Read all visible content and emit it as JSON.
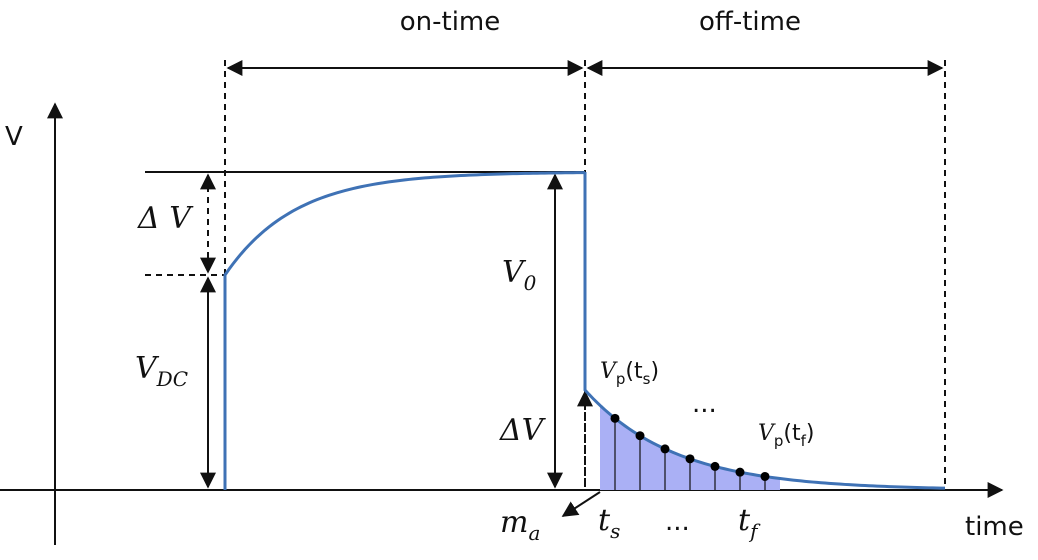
{
  "header": {
    "on_time": "on-time",
    "off_time": "off-time"
  },
  "axes": {
    "y": "V",
    "x": "time"
  },
  "labels": {
    "delta_v_top": "Δ V",
    "v_dc": {
      "main": "V",
      "sub": "DC"
    },
    "v_0": {
      "main": "V",
      "sub": "0"
    },
    "delta_v_bottom": "ΔV",
    "vp_ts": {
      "main": "V",
      "sub": "p",
      "open": "(t",
      "arg_sub": "s",
      "close": ")"
    },
    "dots_top": "...",
    "vp_tf": {
      "main": "V",
      "sub": "p",
      "open": "(t",
      "arg_sub": "f",
      "close": ")"
    },
    "m_a": {
      "main": "m",
      "sub": "a"
    },
    "t_s": {
      "main": "t",
      "sub": "s"
    },
    "dots_bottom": "...",
    "t_f": {
      "main": "t",
      "sub": "f"
    }
  }
}
